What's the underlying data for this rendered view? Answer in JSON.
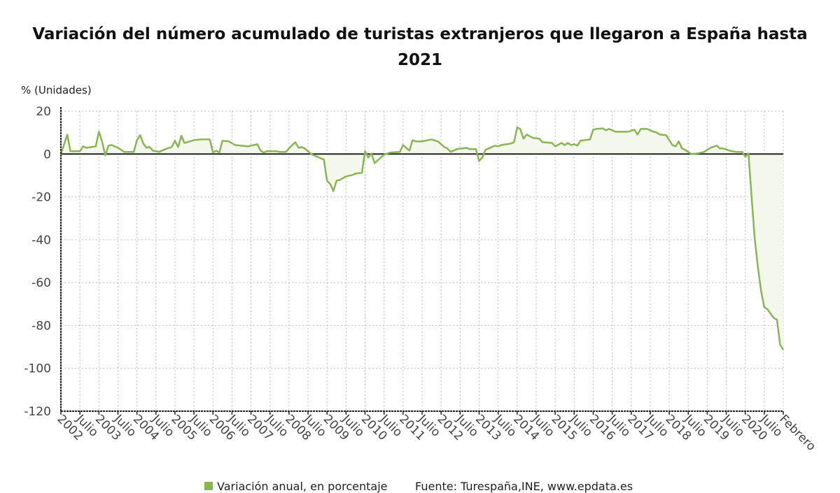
{
  "chart_data": {
    "type": "area",
    "title_lines": [
      "Variación del número acumulado de turistas extranjeros que llegaron a España hasta",
      "2021"
    ],
    "ylabel": "% (Unidades)",
    "ylim": [
      -120,
      20
    ],
    "yticks": [
      20,
      0,
      -20,
      -40,
      -60,
      -80,
      -100,
      -120
    ],
    "x_unit": "months since January 2002",
    "xlim": [
      0,
      228
    ],
    "xticks": [
      [
        0,
        "2002"
      ],
      [
        6,
        "Julio"
      ],
      [
        12,
        "2003"
      ],
      [
        18,
        "Julio"
      ],
      [
        24,
        "2004"
      ],
      [
        30,
        "Julio"
      ],
      [
        36,
        "2005"
      ],
      [
        42,
        "Julio"
      ],
      [
        48,
        "2006"
      ],
      [
        54,
        "Julio"
      ],
      [
        60,
        "2007"
      ],
      [
        66,
        "Julio"
      ],
      [
        72,
        "2008"
      ],
      [
        78,
        "Julio"
      ],
      [
        84,
        "2009"
      ],
      [
        90,
        "Julio"
      ],
      [
        96,
        "2010"
      ],
      [
        102,
        "Julio"
      ],
      [
        108,
        "2011"
      ],
      [
        114,
        "Julio"
      ],
      [
        120,
        "2012"
      ],
      [
        126,
        "Julio"
      ],
      [
        132,
        "2013"
      ],
      [
        138,
        "Julio"
      ],
      [
        144,
        "2014"
      ],
      [
        150,
        "Julio"
      ],
      [
        156,
        "2015"
      ],
      [
        162,
        "Julio"
      ],
      [
        168,
        "2016"
      ],
      [
        174,
        "Julio"
      ],
      [
        180,
        "2017"
      ],
      [
        186,
        "Julio"
      ],
      [
        192,
        "2018"
      ],
      [
        198,
        "Julio"
      ],
      [
        204,
        "2019"
      ],
      [
        210,
        "Julio"
      ],
      [
        216,
        "2020"
      ],
      [
        222,
        "Julio"
      ],
      [
        228,
        "Febrero"
      ]
    ],
    "grid": true,
    "legend_position": "bottom",
    "series": [
      {
        "name": "Variación anual, en porcentaje",
        "color": "#8ab554",
        "points": [
          [
            0,
            0
          ],
          [
            2,
            9.1
          ],
          [
            3,
            1.3
          ],
          [
            6,
            1.3
          ],
          [
            7,
            3.6
          ],
          [
            8,
            2.9
          ],
          [
            11,
            3.6
          ],
          [
            12,
            10.4
          ],
          [
            13,
            5.9
          ],
          [
            14,
            -0.7
          ],
          [
            15,
            3.9
          ],
          [
            16,
            4.2
          ],
          [
            18,
            2.9
          ],
          [
            20,
            1
          ],
          [
            23,
            1
          ],
          [
            24,
            6.5
          ],
          [
            25,
            8.8
          ],
          [
            26,
            4.9
          ],
          [
            27,
            2.9
          ],
          [
            28,
            3.3
          ],
          [
            29,
            1.6
          ],
          [
            31,
            1
          ],
          [
            33,
            2.3
          ],
          [
            35,
            3.3
          ],
          [
            36,
            6.2
          ],
          [
            37,
            3.3
          ],
          [
            38,
            8.5
          ],
          [
            39,
            5.2
          ],
          [
            42,
            6.5
          ],
          [
            44,
            6.8
          ],
          [
            47,
            6.8
          ],
          [
            48,
            0.7
          ],
          [
            49,
            1.6
          ],
          [
            50,
            0.7
          ],
          [
            51,
            6.2
          ],
          [
            53,
            5.9
          ],
          [
            55,
            4.2
          ],
          [
            59,
            3.6
          ],
          [
            62,
            4.6
          ],
          [
            63,
            1.6
          ],
          [
            64,
            0.7
          ],
          [
            65,
            1.3
          ],
          [
            68,
            1.3
          ],
          [
            69,
            1
          ],
          [
            71,
            1
          ],
          [
            73,
            4.2
          ],
          [
            74,
            5.5
          ],
          [
            75,
            2.9
          ],
          [
            76,
            3.3
          ],
          [
            77,
            2.6
          ],
          [
            79,
            0
          ],
          [
            81,
            -1.3
          ],
          [
            83,
            -2.6
          ],
          [
            84,
            -12.4
          ],
          [
            85,
            -14
          ],
          [
            86,
            -17.3
          ],
          [
            87,
            -12.4
          ],
          [
            88,
            -12.1
          ],
          [
            90,
            -10.4
          ],
          [
            92,
            -9.8
          ],
          [
            93,
            -9.1
          ],
          [
            95,
            -8.8
          ],
          [
            96,
            1.3
          ],
          [
            97,
            -1.6
          ],
          [
            98,
            0.3
          ],
          [
            99,
            -4.2
          ],
          [
            102,
            -0.3
          ],
          [
            104,
            0.7
          ],
          [
            107,
            1
          ],
          [
            108,
            4.2
          ],
          [
            110,
            1.6
          ],
          [
            111,
            6.5
          ],
          [
            112,
            5.9
          ],
          [
            114,
            5.9
          ],
          [
            117,
            6.8
          ],
          [
            119,
            5.9
          ],
          [
            121,
            3.3
          ],
          [
            122,
            2.6
          ],
          [
            123,
            1
          ],
          [
            125,
            2.3
          ],
          [
            128,
            2.9
          ],
          [
            129,
            2.3
          ],
          [
            131,
            2.3
          ],
          [
            132,
            -3.3
          ],
          [
            133,
            -1.6
          ],
          [
            134,
            2
          ],
          [
            135,
            2.6
          ],
          [
            137,
            3.9
          ],
          [
            138,
            3.6
          ],
          [
            139,
            4.2
          ],
          [
            142,
            4.9
          ],
          [
            143,
            5.5
          ],
          [
            144,
            12.4
          ],
          [
            145,
            11.7
          ],
          [
            146,
            7.2
          ],
          [
            147,
            9.1
          ],
          [
            149,
            7.5
          ],
          [
            151,
            7.2
          ],
          [
            152,
            5.5
          ],
          [
            155,
            5.2
          ],
          [
            156,
            3.6
          ],
          [
            158,
            5.2
          ],
          [
            159,
            4.2
          ],
          [
            160,
            5.2
          ],
          [
            161,
            4.2
          ],
          [
            162,
            4.6
          ],
          [
            163,
            3.9
          ],
          [
            164,
            6.2
          ],
          [
            167,
            6.8
          ],
          [
            168,
            11.4
          ],
          [
            169,
            11.7
          ],
          [
            171,
            12
          ],
          [
            172,
            11.1
          ],
          [
            173,
            11.7
          ],
          [
            175,
            10.4
          ],
          [
            179,
            10.4
          ],
          [
            181,
            11.4
          ],
          [
            182,
            9.1
          ],
          [
            183,
            11.7
          ],
          [
            185,
            11.7
          ],
          [
            187,
            10.4
          ],
          [
            188,
            10.1
          ],
          [
            189,
            9.1
          ],
          [
            191,
            8.8
          ],
          [
            193,
            4.2
          ],
          [
            194,
            3.6
          ],
          [
            195,
            5.9
          ],
          [
            196,
            2.6
          ],
          [
            197,
            2
          ],
          [
            199,
            0
          ],
          [
            201,
            0.3
          ],
          [
            203,
            1
          ],
          [
            205,
            2.9
          ],
          [
            207,
            3.9
          ],
          [
            208,
            2.6
          ],
          [
            209,
            2.6
          ],
          [
            211,
            1.6
          ],
          [
            213,
            1
          ],
          [
            215,
            1
          ],
          [
            216,
            -1.3
          ],
          [
            217,
            0.3
          ],
          [
            218,
            -20
          ],
          [
            219,
            -40
          ],
          [
            220,
            -53
          ],
          [
            221,
            -64
          ],
          [
            222,
            -71.4
          ],
          [
            223,
            -72.5
          ],
          [
            224,
            -74.5
          ],
          [
            225,
            -76.5
          ],
          [
            226,
            -77.3
          ],
          [
            227,
            -89
          ],
          [
            228,
            -91.3
          ]
        ]
      }
    ],
    "legend_label": "Variación anual, en porcentaje",
    "source": "Fuente: Turespaña,INE, www.epdata.es",
    "fill_color": "#f3f7ec",
    "axis_color": "#222222",
    "grid_color": "#bbbbbb"
  }
}
